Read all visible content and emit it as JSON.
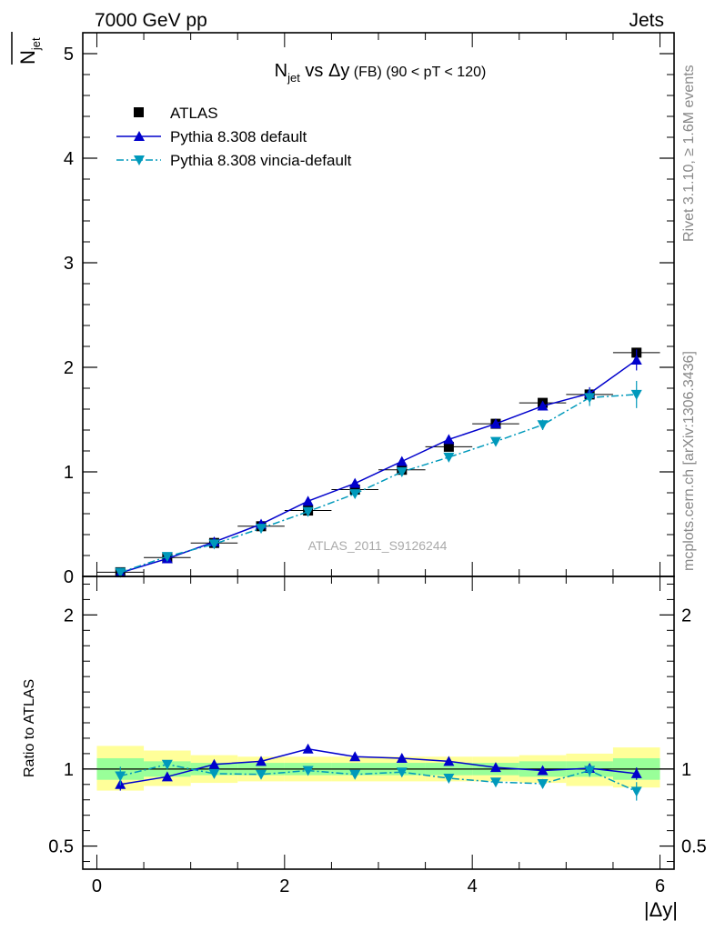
{
  "header": {
    "left": "7000 GeV pp",
    "right": "Jets"
  },
  "side_labels": {
    "rivet": "Rivet 3.1.10, ≥ 1.6M events",
    "mcplots": "mcplots.cern.ch [arXiv:1306.3436]"
  },
  "chart_data": [
    {
      "type": "scatter",
      "title_main": "N",
      "title_sub": "jet",
      "title_vs": " vs Δy",
      "title_rest": " (FB) (90 < pT < 120)",
      "ylabel_main": "N",
      "ylabel_sub": "jet",
      "watermark": "ATLAS_2011_S9126244",
      "xlim": [
        -0.15,
        6.15
      ],
      "ylim": [
        0,
        5.2
      ],
      "yticks": [
        0,
        1,
        2,
        3,
        4,
        5
      ],
      "ytick_labels": [
        "0",
        "1",
        "2",
        "3",
        "4",
        "5"
      ],
      "legend_position": "top-left",
      "series": [
        {
          "name": "ATLAS",
          "color": "#000000",
          "marker": "square",
          "line": "none",
          "x": [
            0.25,
            0.75,
            1.25,
            1.75,
            2.25,
            2.75,
            3.25,
            3.75,
            4.25,
            4.75,
            5.25,
            5.75
          ],
          "y": [
            0.04,
            0.18,
            0.32,
            0.48,
            0.63,
            0.83,
            1.02,
            1.24,
            1.46,
            1.66,
            1.74,
            2.14
          ],
          "xerr": 0.25
        },
        {
          "name": "Pythia 8.308 default",
          "color": "#0000cc",
          "marker": "triangle-up",
          "line": "solid",
          "x": [
            0.25,
            0.75,
            1.25,
            1.75,
            2.25,
            2.75,
            3.25,
            3.75,
            4.25,
            4.75,
            5.25,
            5.75
          ],
          "y": [
            0.035,
            0.17,
            0.33,
            0.5,
            0.72,
            0.89,
            1.1,
            1.31,
            1.46,
            1.63,
            1.75,
            2.07
          ],
          "yerr": [
            0.005,
            0.01,
            0.01,
            0.01,
            0.01,
            0.02,
            0.02,
            0.02,
            0.03,
            0.04,
            0.06,
            0.1
          ]
        },
        {
          "name": "Pythia 8.308 vincia-default",
          "color": "#0099bb",
          "marker": "triangle-down",
          "line": "dashdot",
          "x": [
            0.25,
            0.75,
            1.25,
            1.75,
            2.25,
            2.75,
            3.25,
            3.75,
            4.25,
            4.75,
            5.25,
            5.75
          ],
          "y": [
            0.038,
            0.19,
            0.31,
            0.46,
            0.62,
            0.79,
            1.0,
            1.14,
            1.29,
            1.45,
            1.71,
            1.74
          ],
          "yerr": [
            0.005,
            0.01,
            0.01,
            0.01,
            0.01,
            0.02,
            0.02,
            0.03,
            0.03,
            0.05,
            0.08,
            0.13
          ]
        }
      ]
    },
    {
      "type": "scatter",
      "ylabel": "Ratio to ATLAS",
      "xlabel": "|Δy|",
      "xlim": [
        -0.15,
        6.15
      ],
      "ylim": [
        0.35,
        2.25
      ],
      "yticks": [
        0.5,
        1,
        2
      ],
      "ytick_labels": [
        "0.5",
        "1",
        "2"
      ],
      "xticks": [
        0,
        2,
        4,
        6
      ],
      "xtick_labels": [
        "0",
        "2",
        "4",
        "6"
      ],
      "bands": {
        "x_edges": [
          0,
          0.5,
          1.0,
          1.5,
          2.0,
          2.5,
          3.0,
          3.5,
          4.0,
          4.5,
          5.0,
          5.5,
          6.0
        ],
        "inner_lo": [
          0.93,
          0.95,
          0.96,
          0.96,
          0.96,
          0.96,
          0.96,
          0.96,
          0.96,
          0.95,
          0.95,
          0.93
        ],
        "inner_hi": [
          1.07,
          1.05,
          1.04,
          1.04,
          1.04,
          1.04,
          1.04,
          1.04,
          1.04,
          1.05,
          1.05,
          1.07
        ],
        "outer_lo": [
          0.86,
          0.89,
          0.91,
          0.92,
          0.92,
          0.92,
          0.92,
          0.92,
          0.92,
          0.91,
          0.89,
          0.88
        ],
        "outer_hi": [
          1.15,
          1.12,
          1.09,
          1.08,
          1.08,
          1.08,
          1.08,
          1.08,
          1.08,
          1.09,
          1.1,
          1.14
        ],
        "inner_color": "#99ff99",
        "outer_color": "#ffff99"
      },
      "series": [
        {
          "name": "Pythia 8.308 default",
          "color": "#0000cc",
          "marker": "triangle-up",
          "line": "solid",
          "x": [
            0.25,
            0.75,
            1.25,
            1.75,
            2.25,
            2.75,
            3.25,
            3.75,
            4.25,
            4.75,
            5.25,
            5.75
          ],
          "y": [
            0.9,
            0.95,
            1.03,
            1.05,
            1.13,
            1.08,
            1.07,
            1.05,
            1.01,
            0.99,
            1.005,
            0.97
          ],
          "yerr": [
            0.04,
            0.02,
            0.01,
            0.01,
            0.01,
            0.01,
            0.01,
            0.01,
            0.01,
            0.02,
            0.03,
            0.04
          ]
        },
        {
          "name": "Pythia 8.308 vincia-default",
          "color": "#0099bb",
          "marker": "triangle-down",
          "line": "dashdot",
          "x": [
            0.25,
            0.75,
            1.25,
            1.75,
            2.25,
            2.75,
            3.25,
            3.75,
            4.25,
            4.75,
            5.25,
            5.75
          ],
          "y": [
            0.955,
            1.03,
            0.97,
            0.965,
            0.99,
            0.965,
            0.98,
            0.94,
            0.915,
            0.905,
            0.99,
            0.855
          ],
          "yerr": [
            0.06,
            0.02,
            0.02,
            0.01,
            0.01,
            0.01,
            0.01,
            0.02,
            0.02,
            0.03,
            0.04,
            0.06
          ]
        }
      ]
    }
  ]
}
